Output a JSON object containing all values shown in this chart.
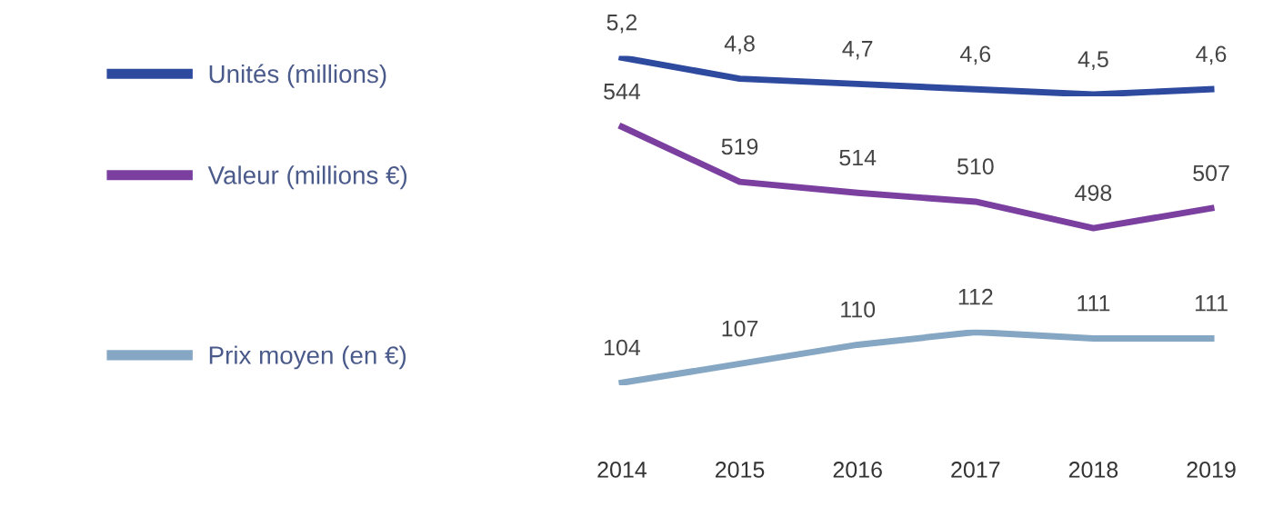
{
  "chart_data": [
    {
      "type": "line",
      "categories": [
        "2014",
        "2015",
        "2016",
        "2017",
        "2018",
        "2019"
      ],
      "legend": "left",
      "tick_labels": false,
      "series": [
        {
          "name": "Unités (millions)",
          "color": "#2e4a9e",
          "values": [
            5.2,
            4.8,
            4.7,
            4.6,
            4.5,
            4.6
          ],
          "value_labels": [
            "5,2",
            "4,8",
            "4,7",
            "4,6",
            "4,5",
            "4,6"
          ]
        }
      ]
    },
    {
      "type": "line",
      "categories": [
        "2014",
        "2015",
        "2016",
        "2017",
        "2018",
        "2019"
      ],
      "legend": "left",
      "tick_labels": false,
      "series": [
        {
          "name": "Valeur (millions €)",
          "color": "#7b3fa0",
          "values": [
            544,
            519,
            514,
            510,
            498,
            507
          ],
          "value_labels": [
            "544",
            "519",
            "514",
            "510",
            "498",
            "507"
          ]
        }
      ]
    },
    {
      "type": "line",
      "categories": [
        "2014",
        "2015",
        "2016",
        "2017",
        "2018",
        "2019"
      ],
      "legend": "left",
      "tick_labels": "x",
      "series": [
        {
          "name": "Prix moyen (en €)",
          "color": "#86a7c4",
          "values": [
            104,
            107,
            110,
            112,
            111,
            111
          ],
          "value_labels": [
            "104",
            "107",
            "110",
            "112",
            "111",
            "111"
          ]
        }
      ]
    }
  ]
}
